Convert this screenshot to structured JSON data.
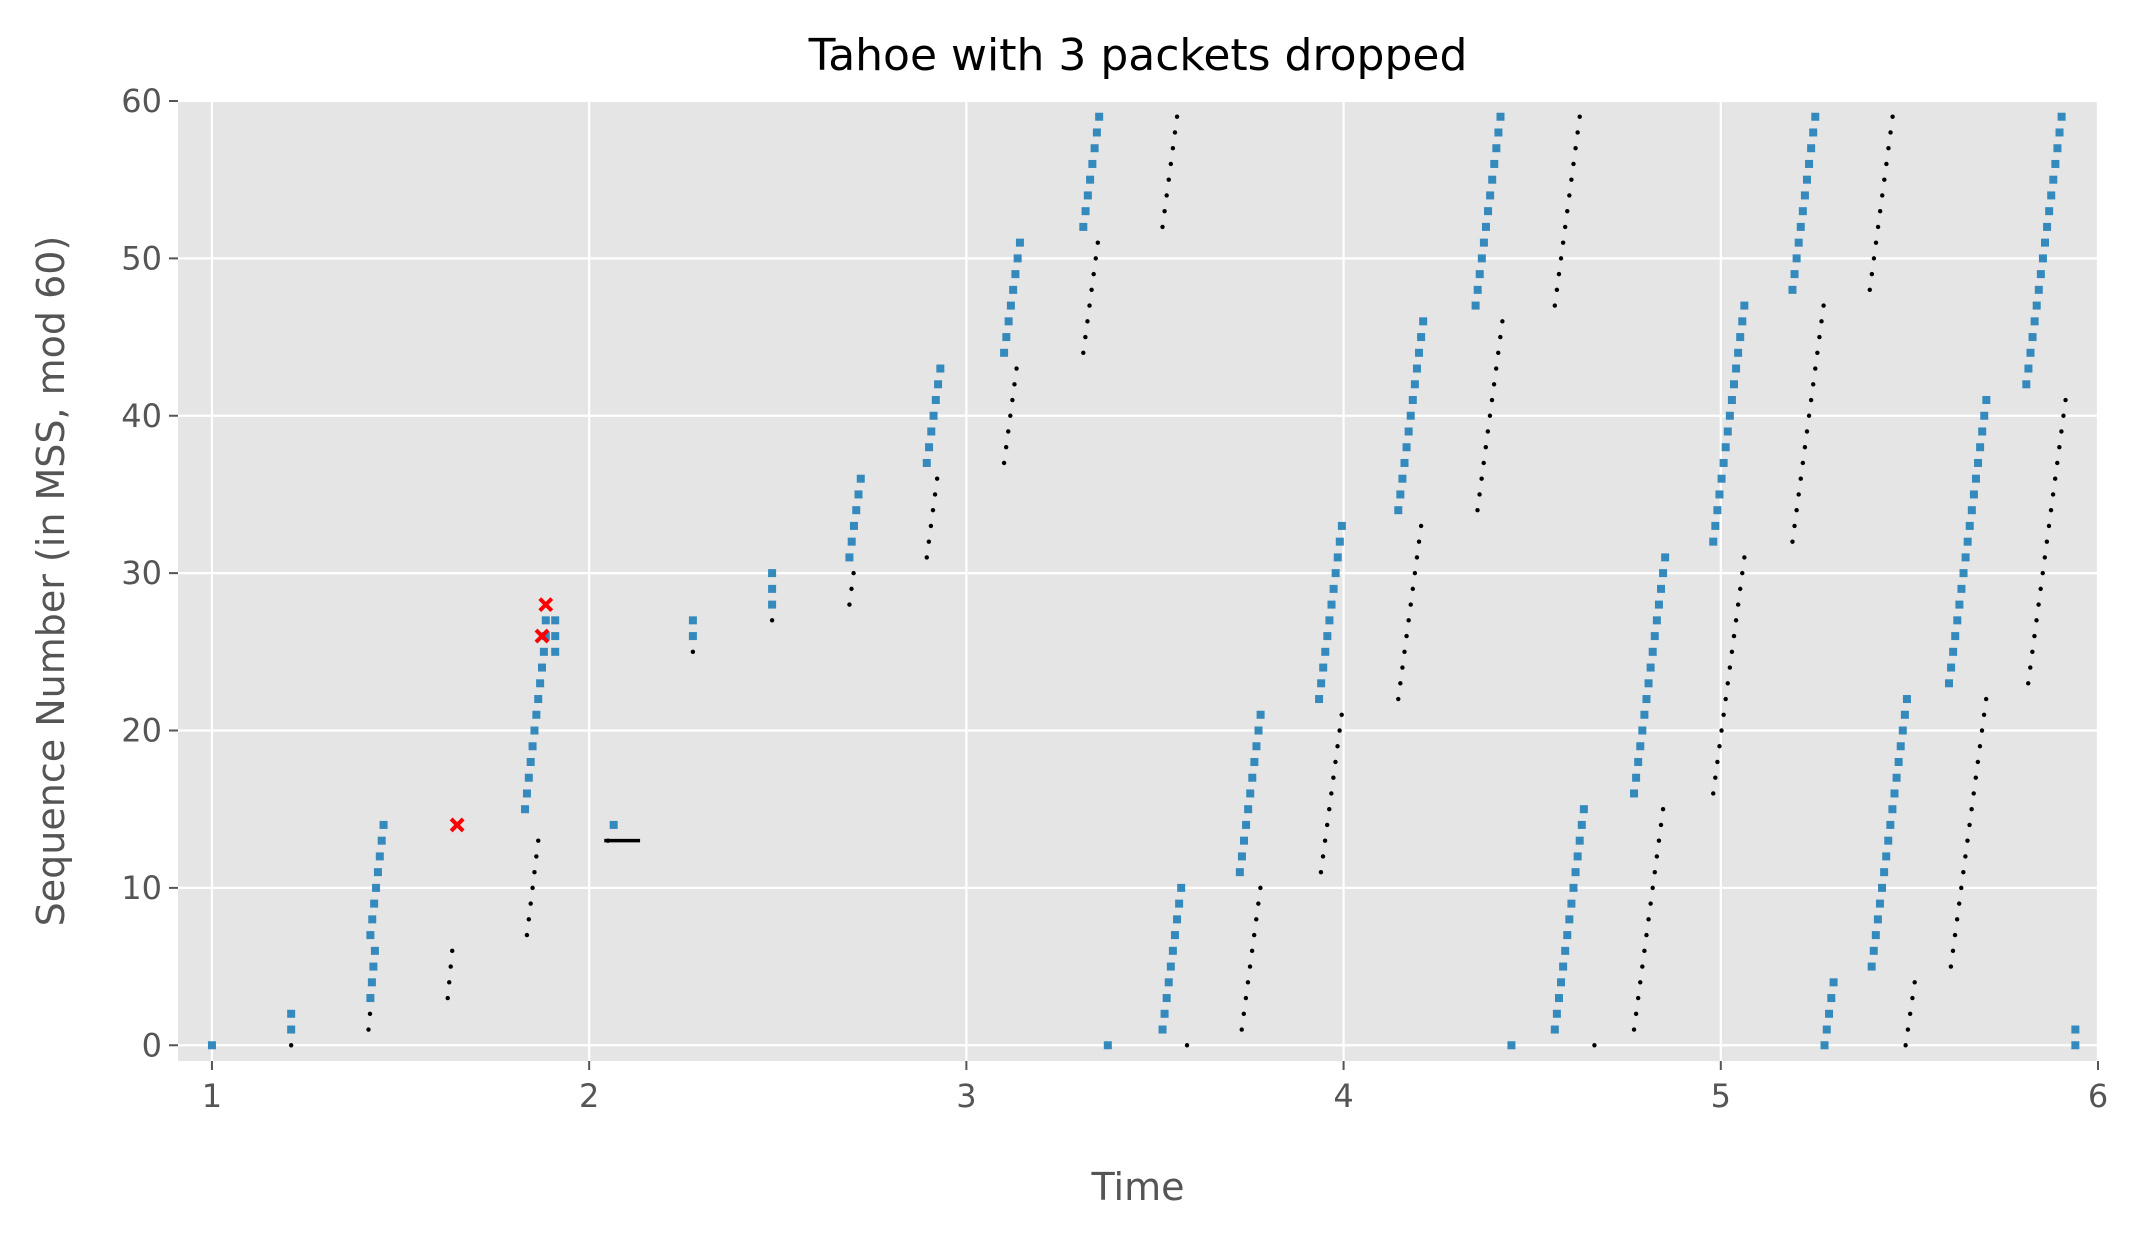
{
  "chart_data": {
    "type": "scatter",
    "title": "Tahoe with 3 packets dropped",
    "xlabel": "Time",
    "ylabel": "Sequence Number (in MSS, mod 60)",
    "xlim": [
      0.91,
      6.0
    ],
    "ylim": [
      -1,
      60
    ],
    "xticks": [
      1,
      2,
      3,
      4,
      5,
      6
    ],
    "yticks": [
      0,
      10,
      20,
      30,
      40,
      50,
      60
    ],
    "grid": true,
    "colors": {
      "background": "#e5e5e5",
      "grid": "#ffffff",
      "sent": "#348abd",
      "ack": "#000000",
      "drop": "#ff0000",
      "text": "#555555"
    },
    "series": [
      {
        "markers": "blue-square",
        "bursts": [
          {
            "t": 1.0,
            "dt": 0.0,
            "s0": 0,
            "n": 1
          },
          {
            "t": 1.21,
            "dt": 0.0,
            "s0": 1,
            "n": 2
          },
          {
            "t": 1.42,
            "dt": 0.004,
            "s0": 3,
            "n": 4
          },
          {
            "t": 1.42,
            "dt": 0.005,
            "s0": 7,
            "n": 8
          },
          {
            "t": 1.83,
            "dt": 0.005,
            "s0": 15,
            "n": 12
          },
          {
            "t": 1.885,
            "dt": 0.009,
            "s0": 27,
            "n": 1
          },
          {
            "t": 1.91,
            "dt": 0.0,
            "s0": 25,
            "n": 3
          },
          {
            "t": 2.065,
            "dt": 0.0,
            "s0": 14,
            "n": 1
          },
          {
            "t": 2.275,
            "dt": 0.0,
            "s0": 26,
            "n": 2
          },
          {
            "t": 2.485,
            "dt": 0.0,
            "s0": 28,
            "n": 3
          },
          {
            "t": 2.69,
            "dt": 0.006,
            "s0": 31,
            "n": 6
          },
          {
            "t": 2.895,
            "dt": 0.006,
            "s0": 37,
            "n": 7
          },
          {
            "t": 3.1,
            "dt": 0.006,
            "s0": 44,
            "n": 8
          },
          {
            "t": 3.31,
            "dt": 0.006,
            "s0": 52,
            "n": 8
          },
          {
            "t": 3.375,
            "dt": 0.0,
            "s0": 0,
            "n": 1
          },
          {
            "t": 3.52,
            "dt": 0.0055,
            "s0": 1,
            "n": 10
          },
          {
            "t": 3.725,
            "dt": 0.0055,
            "s0": 11,
            "n": 11
          },
          {
            "t": 3.935,
            "dt": 0.0055,
            "s0": 22,
            "n": 12
          },
          {
            "t": 4.145,
            "dt": 0.0055,
            "s0": 34,
            "n": 13
          },
          {
            "t": 4.35,
            "dt": 0.0055,
            "s0": 47,
            "n": 13
          },
          {
            "t": 4.445,
            "dt": 0.0,
            "s0": 0,
            "n": 1
          },
          {
            "t": 4.56,
            "dt": 0.0055,
            "s0": 1,
            "n": 15
          },
          {
            "t": 4.77,
            "dt": 0.0055,
            "s0": 16,
            "n": 16
          },
          {
            "t": 4.98,
            "dt": 0.0055,
            "s0": 32,
            "n": 16
          },
          {
            "t": 5.19,
            "dt": 0.0055,
            "s0": 48,
            "n": 12
          },
          {
            "t": 5.275,
            "dt": 0.006,
            "s0": 0,
            "n": 5
          },
          {
            "t": 5.4,
            "dt": 0.0055,
            "s0": 5,
            "n": 18
          },
          {
            "t": 5.605,
            "dt": 0.0055,
            "s0": 23,
            "n": 19
          },
          {
            "t": 5.81,
            "dt": 0.0055,
            "s0": 42,
            "n": 18
          },
          {
            "t": 5.94,
            "dt": 0.0,
            "s0": 0,
            "n": 2
          }
        ]
      },
      {
        "markers": "black-dot",
        "bursts": [
          {
            "t": 1.21,
            "dt": 0.0,
            "s0": 0,
            "n": 1
          },
          {
            "t": 1.415,
            "dt": 0.004,
            "s0": 1,
            "n": 2
          },
          {
            "t": 1.625,
            "dt": 0.004,
            "s0": 3,
            "n": 4
          },
          {
            "t": 1.835,
            "dt": 0.005,
            "s0": 7,
            "n": 7
          },
          {
            "t": 2.05,
            "dt": 0.0,
            "s0": 13,
            "n": 1
          },
          {
            "t": 2.275,
            "dt": 0.0,
            "s0": 25,
            "n": 1
          },
          {
            "t": 2.485,
            "dt": 0.0,
            "s0": 27,
            "n": 1
          },
          {
            "t": 2.69,
            "dt": 0.0055,
            "s0": 28,
            "n": 3
          },
          {
            "t": 2.895,
            "dt": 0.0055,
            "s0": 31,
            "n": 6
          },
          {
            "t": 3.1,
            "dt": 0.0055,
            "s0": 37,
            "n": 7
          },
          {
            "t": 3.31,
            "dt": 0.0055,
            "s0": 44,
            "n": 8
          },
          {
            "t": 3.52,
            "dt": 0.0055,
            "s0": 52,
            "n": 8
          },
          {
            "t": 3.585,
            "dt": 0.0,
            "s0": 0,
            "n": 1
          },
          {
            "t": 3.73,
            "dt": 0.0055,
            "s0": 1,
            "n": 10
          },
          {
            "t": 3.94,
            "dt": 0.0055,
            "s0": 11,
            "n": 11
          },
          {
            "t": 4.145,
            "dt": 0.0055,
            "s0": 22,
            "n": 12
          },
          {
            "t": 4.355,
            "dt": 0.0055,
            "s0": 34,
            "n": 13
          },
          {
            "t": 4.56,
            "dt": 0.0055,
            "s0": 47,
            "n": 13
          },
          {
            "t": 4.665,
            "dt": 0.0,
            "s0": 0,
            "n": 1
          },
          {
            "t": 4.77,
            "dt": 0.0055,
            "s0": 1,
            "n": 15
          },
          {
            "t": 4.98,
            "dt": 0.0055,
            "s0": 16,
            "n": 16
          },
          {
            "t": 5.19,
            "dt": 0.0055,
            "s0": 32,
            "n": 16
          },
          {
            "t": 5.395,
            "dt": 0.0055,
            "s0": 48,
            "n": 12
          },
          {
            "t": 5.49,
            "dt": 0.006,
            "s0": 0,
            "n": 5
          },
          {
            "t": 5.61,
            "dt": 0.0055,
            "s0": 5,
            "n": 18
          },
          {
            "t": 5.815,
            "dt": 0.0055,
            "s0": 23,
            "n": 19
          }
        ]
      },
      {
        "markers": "red-x",
        "points": [
          [
            1.65,
            14
          ],
          [
            1.875,
            26
          ],
          [
            1.885,
            28
          ]
        ]
      }
    ],
    "ack_line": {
      "x": [
        2.04,
        2.135
      ],
      "y": 13
    }
  }
}
